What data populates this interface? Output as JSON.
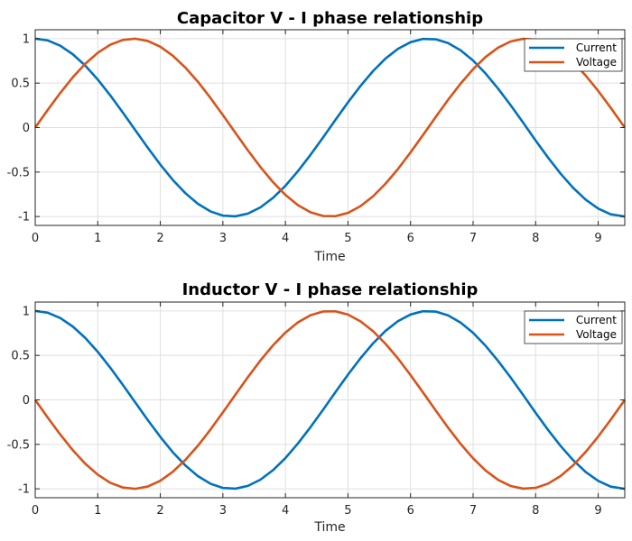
{
  "chart_data": [
    {
      "type": "line",
      "title": "Capacitor V - I phase relationship",
      "xlabel": "Time",
      "ylabel": "",
      "xlim": [
        0,
        9.4248
      ],
      "ylim": [
        -1.1,
        1.1
      ],
      "xticks": [
        "0",
        "1",
        "2",
        "3",
        "4",
        "5",
        "6",
        "7",
        "8",
        "9"
      ],
      "yticks": [
        "1",
        "0.5",
        "0",
        "-0.5",
        "-1"
      ],
      "grid": true,
      "legend_position": "top-right",
      "series": [
        {
          "name": "Current",
          "color": "#0072BD",
          "x": [
            0,
            0.2,
            0.4,
            0.6,
            0.8,
            1,
            1.2,
            1.4,
            1.6,
            1.8,
            2,
            2.2,
            2.4,
            2.6,
            2.8,
            3,
            3.2,
            3.4,
            3.6,
            3.8,
            4,
            4.2,
            4.4,
            4.6,
            4.8,
            5,
            5.2,
            5.4,
            5.6,
            5.8,
            6,
            6.2,
            6.4,
            6.6,
            6.8,
            7,
            7.2,
            7.4,
            7.6,
            7.8,
            8,
            8.2,
            8.4,
            8.6,
            8.8,
            9,
            9.2,
            9.4248
          ],
          "y": [
            1,
            0.98,
            0.921,
            0.825,
            0.697,
            0.54,
            0.362,
            0.17,
            -0.029,
            -0.227,
            -0.416,
            -0.589,
            -0.737,
            -0.857,
            -0.942,
            -0.99,
            -0.998,
            -0.967,
            -0.897,
            -0.791,
            -0.654,
            -0.49,
            -0.307,
            -0.113,
            0.087,
            0.284,
            0.468,
            0.635,
            0.776,
            0.886,
            0.96,
            0.997,
            0.993,
            0.95,
            0.869,
            0.754,
            0.608,
            0.438,
            0.252,
            0.056,
            -0.146,
            -0.339,
            -0.519,
            -0.678,
            -0.811,
            -0.911,
            -0.975,
            -1
          ]
        },
        {
          "name": "Voltage",
          "color": "#D95319",
          "x": [
            0,
            0.2,
            0.4,
            0.6,
            0.8,
            1,
            1.2,
            1.4,
            1.6,
            1.8,
            2,
            2.2,
            2.4,
            2.6,
            2.8,
            3,
            3.2,
            3.4,
            3.6,
            3.8,
            4,
            4.2,
            4.4,
            4.6,
            4.8,
            5,
            5.2,
            5.4,
            5.6,
            5.8,
            6,
            6.2,
            6.4,
            6.6,
            6.8,
            7,
            7.2,
            7.4,
            7.6,
            7.8,
            8,
            8.2,
            8.4,
            8.6,
            8.8,
            9,
            9.2,
            9.4248
          ],
          "y": [
            0,
            0.199,
            0.389,
            0.565,
            0.717,
            0.841,
            0.932,
            0.985,
            1,
            0.974,
            0.909,
            0.808,
            0.675,
            0.516,
            0.335,
            0.141,
            -0.058,
            -0.256,
            -0.443,
            -0.612,
            -0.757,
            -0.872,
            -0.952,
            -0.994,
            -0.996,
            -0.959,
            -0.883,
            -0.773,
            -0.631,
            -0.465,
            -0.279,
            -0.083,
            0.117,
            0.312,
            0.494,
            0.657,
            0.794,
            0.899,
            0.968,
            0.998,
            0.989,
            0.941,
            0.855,
            0.735,
            0.585,
            0.412,
            0.223,
            0
          ]
        }
      ]
    },
    {
      "type": "line",
      "title": "Inductor V - I phase relationship",
      "xlabel": "Time",
      "ylabel": "",
      "xlim": [
        0,
        9.4248
      ],
      "ylim": [
        -1.1,
        1.1
      ],
      "xticks": [
        "0",
        "1",
        "2",
        "3",
        "4",
        "5",
        "6",
        "7",
        "8",
        "9"
      ],
      "yticks": [
        "1",
        "0.5",
        "0",
        "-0.5",
        "-1"
      ],
      "grid": true,
      "legend_position": "top-right",
      "series": [
        {
          "name": "Current",
          "color": "#0072BD",
          "x": [
            0,
            0.2,
            0.4,
            0.6,
            0.8,
            1,
            1.2,
            1.4,
            1.6,
            1.8,
            2,
            2.2,
            2.4,
            2.6,
            2.8,
            3,
            3.2,
            3.4,
            3.6,
            3.8,
            4,
            4.2,
            4.4,
            4.6,
            4.8,
            5,
            5.2,
            5.4,
            5.6,
            5.8,
            6,
            6.2,
            6.4,
            6.6,
            6.8,
            7,
            7.2,
            7.4,
            7.6,
            7.8,
            8,
            8.2,
            8.4,
            8.6,
            8.8,
            9,
            9.2,
            9.4248
          ],
          "y": [
            1,
            0.98,
            0.921,
            0.825,
            0.697,
            0.54,
            0.362,
            0.17,
            -0.029,
            -0.227,
            -0.416,
            -0.589,
            -0.737,
            -0.857,
            -0.942,
            -0.99,
            -0.998,
            -0.967,
            -0.897,
            -0.791,
            -0.654,
            -0.49,
            -0.307,
            -0.113,
            0.087,
            0.284,
            0.468,
            0.635,
            0.776,
            0.886,
            0.96,
            0.997,
            0.993,
            0.95,
            0.869,
            0.754,
            0.608,
            0.438,
            0.252,
            0.056,
            -0.146,
            -0.339,
            -0.519,
            -0.678,
            -0.811,
            -0.911,
            -0.975,
            -1
          ]
        },
        {
          "name": "Voltage",
          "color": "#D95319",
          "x": [
            0,
            0.2,
            0.4,
            0.6,
            0.8,
            1,
            1.2,
            1.4,
            1.6,
            1.8,
            2,
            2.2,
            2.4,
            2.6,
            2.8,
            3,
            3.2,
            3.4,
            3.6,
            3.8,
            4,
            4.2,
            4.4,
            4.6,
            4.8,
            5,
            5.2,
            5.4,
            5.6,
            5.8,
            6,
            6.2,
            6.4,
            6.6,
            6.8,
            7,
            7.2,
            7.4,
            7.6,
            7.8,
            8,
            8.2,
            8.4,
            8.6,
            8.8,
            9,
            9.2,
            9.4248
          ],
          "y": [
            0,
            -0.199,
            -0.389,
            -0.565,
            -0.717,
            -0.841,
            -0.932,
            -0.985,
            -1,
            -0.974,
            -0.909,
            -0.808,
            -0.675,
            -0.516,
            -0.335,
            -0.141,
            0.058,
            0.256,
            0.443,
            0.612,
            0.757,
            0.872,
            0.952,
            0.994,
            0.996,
            0.959,
            0.883,
            0.773,
            0.631,
            0.465,
            0.279,
            0.083,
            -0.117,
            -0.312,
            -0.494,
            -0.657,
            -0.794,
            -0.899,
            -0.968,
            -0.998,
            -0.989,
            -0.941,
            -0.855,
            -0.735,
            -0.585,
            -0.412,
            -0.223,
            0
          ]
        }
      ]
    }
  ]
}
